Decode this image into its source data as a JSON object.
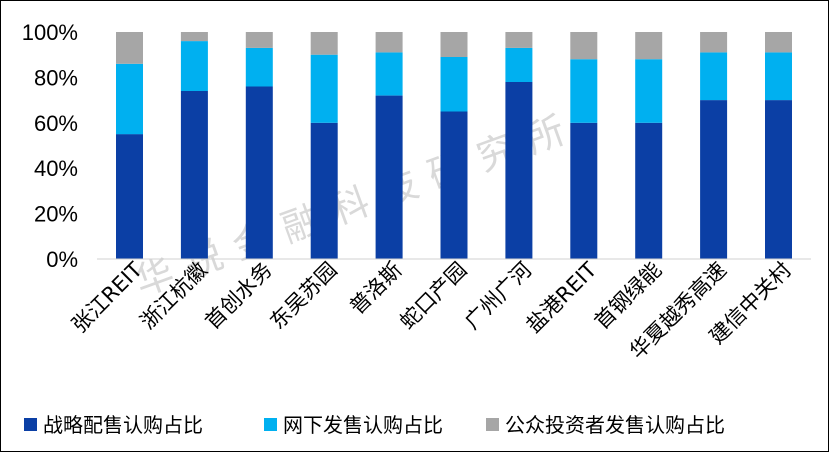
{
  "chart_data": {
    "type": "bar",
    "stacked": true,
    "categories": [
      "张江REIT",
      "浙江杭徽",
      "首创水务",
      "东吴苏园",
      "普洛斯",
      "蛇口产园",
      "广州广河",
      "盐港REIT",
      "首钢绿能",
      "华夏越秀高速",
      "建信中关村"
    ],
    "series": [
      {
        "name": "战略配售认购占比",
        "color": "#0b3fa5",
        "values": [
          55,
          74,
          76,
          60,
          72,
          65,
          78,
          60,
          60,
          70,
          70
        ]
      },
      {
        "name": "网下发售认购占比",
        "color": "#00b0f0",
        "values": [
          31,
          22,
          17,
          30,
          19,
          24,
          15,
          28,
          28,
          21,
          21
        ]
      },
      {
        "name": "公众投资者发售认购占比",
        "color": "#a6a6a6",
        "values": [
          14,
          4,
          7,
          10,
          9,
          11,
          7,
          12,
          12,
          9,
          9
        ]
      }
    ],
    "y_ticks": [
      "0%",
      "20%",
      "40%",
      "60%",
      "80%",
      "100%"
    ],
    "ylim": [
      0,
      100
    ],
    "legend_position": "bottom",
    "grid": false
  },
  "watermark": "华锐金融科技研究所"
}
